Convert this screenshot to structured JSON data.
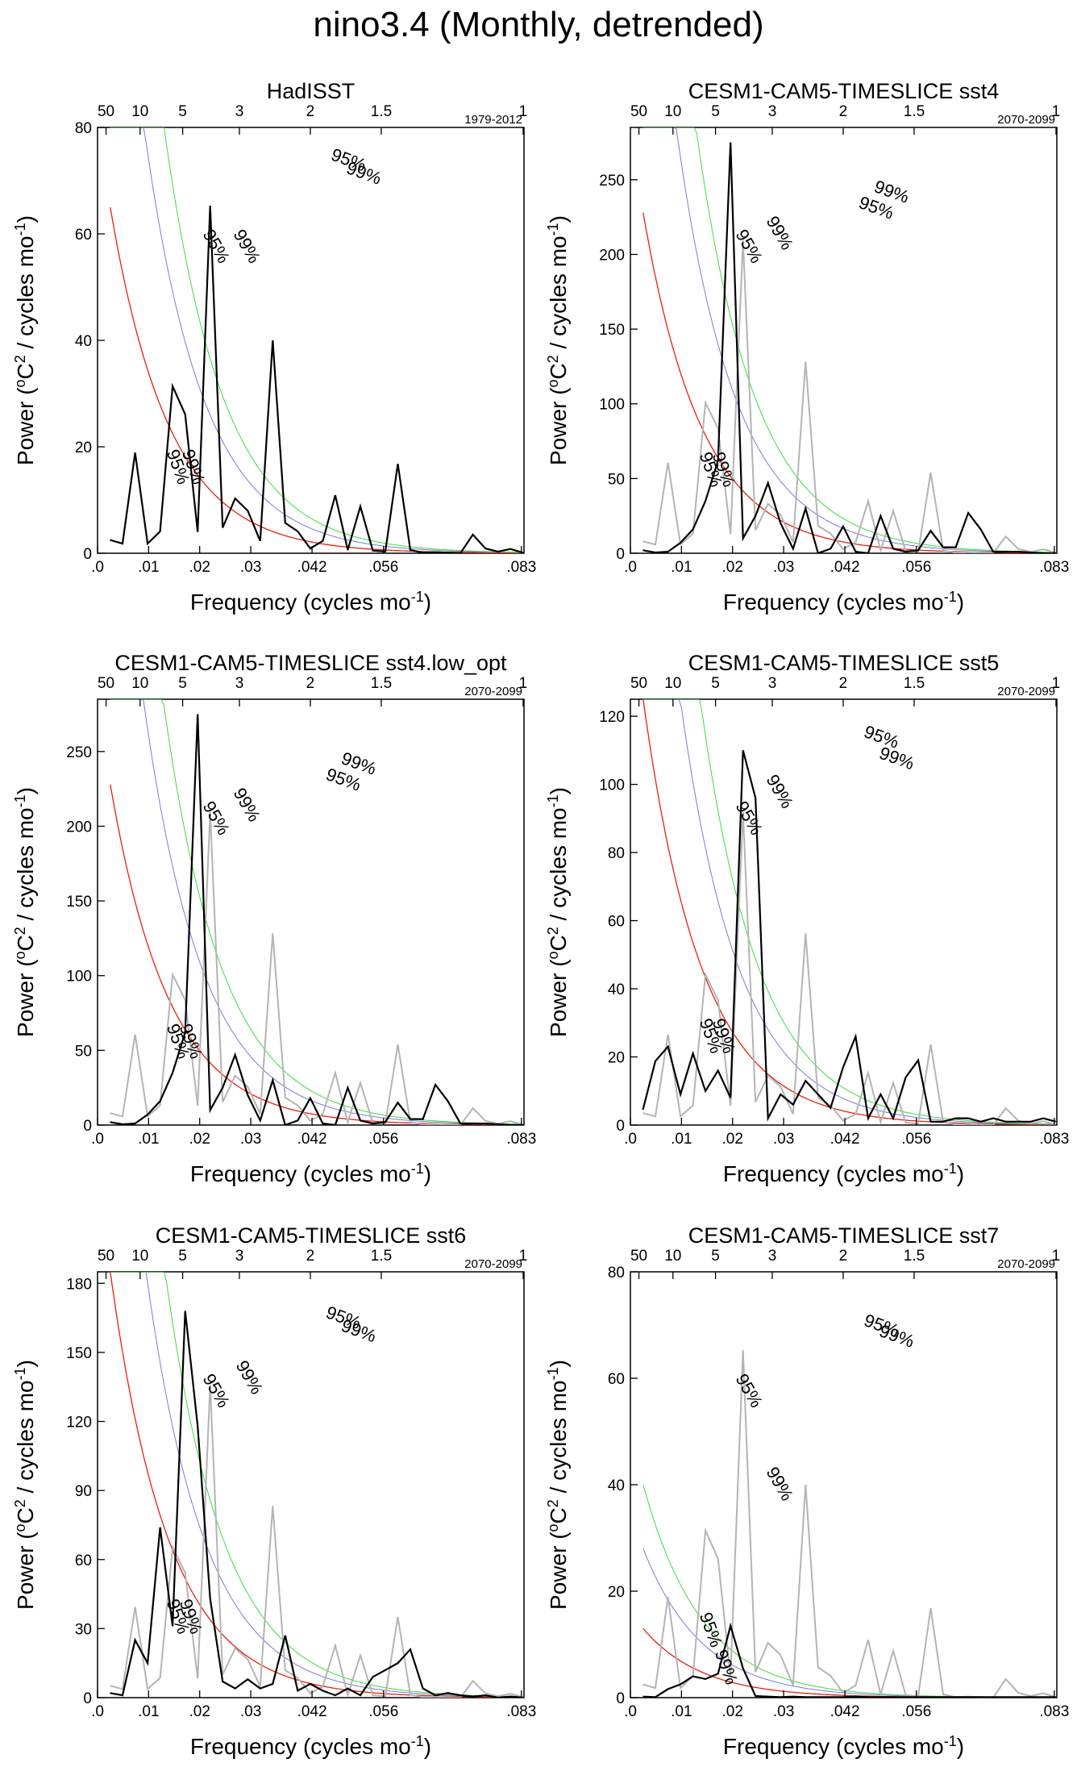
{
  "figure_title": "nino3.4 (Monthly, detrended)",
  "colors": {
    "obs": "#000000",
    "ref": "#b4b4b4",
    "red": "#e8200c",
    "blue": "#7a7ad8",
    "green": "#3ade3a",
    "blue_label": "#1010c8",
    "green_label": "#20d020"
  },
  "shared_axes": {
    "xlabel": "Frequency (cycles mo",
    "xlabel_sup": "-1",
    "xlabel_end": ")",
    "ylabel_pre": "Power (",
    "ylabel_o": "o",
    "ylabel_C": "C",
    "ylabel_2": "2",
    "ylabel_mid": " / cycles mo",
    "ylabel_sup": "-1",
    "ylabel_end": ")",
    "xticks": [
      0,
      0.01,
      0.02,
      0.03,
      0.042,
      0.056,
      0.083
    ],
    "xtick_labels": [
      ".0",
      ".01",
      ".02",
      ".03",
      ".042",
      ".056",
      ".083"
    ],
    "top_ticks": [
      50,
      10,
      5,
      3,
      2,
      1.5,
      1
    ],
    "top_tick_labels": [
      "50",
      "10",
      "5",
      "3",
      "2",
      "1.5",
      "1"
    ],
    "label_95": "95%",
    "label_99": "99%"
  },
  "chart_data": [
    {
      "type": "line",
      "title": "HadISST",
      "years": "1979-2012",
      "ylim": [
        0,
        80
      ],
      "yticks": [
        0,
        20,
        40,
        60,
        80
      ],
      "show_ref": false,
      "obs": [
        2.5,
        1.8,
        18.9,
        1.8,
        4.1,
        31.4,
        26.1,
        4.0,
        65.3,
        4.8,
        10.3,
        8.0,
        2.3,
        40.0,
        5.7,
        4.1,
        0.9,
        2.3,
        10.9,
        0.6,
        8.8,
        0.5,
        0.3,
        16.8,
        0.6,
        0.1,
        0.2,
        0.1,
        0,
        3.5,
        0.9,
        0.3,
        0.8,
        0.1
      ],
      "red_scale": 65,
      "curve_lo": 65,
      "curve_95_scale": 142,
      "curve_99_scale": 200,
      "l95": [
        [
          0.0135,
          0.019
        ],
        [
          0.0205,
          0.06
        ],
        [
          0.0455,
          0.074
        ]
      ],
      "l99": [
        [
          0.0165,
          0.019
        ],
        [
          0.0265,
          0.06
        ],
        [
          0.0485,
          0.0715
        ]
      ]
    },
    {
      "type": "line",
      "title": "CESM1-CAM5-TIMESLICE sst4",
      "years": "2070-2099",
      "ylim": [
        0,
        285
      ],
      "yticks": [
        0,
        50,
        100,
        150,
        200,
        250
      ],
      "show_ref": true,
      "obs": [
        2,
        0.5,
        1,
        7,
        16,
        35,
        62,
        275,
        10,
        25,
        47,
        20,
        3,
        30,
        0,
        3,
        18,
        1,
        0,
        25,
        3,
        1,
        2,
        15,
        4,
        4,
        27,
        16,
        1,
        1,
        1,
        0.5,
        0,
        0
      ],
      "red_scale": 228,
      "curve_95_scale": 500,
      "curve_99_scale": 700,
      "l95": [
        [
          0.0135,
          0.0185
        ],
        [
          0.0205,
          0.06
        ],
        [
          0.0445,
          0.065
        ]
      ],
      "l99": [
        [
          0.016,
          0.0185
        ],
        [
          0.0265,
          0.0625
        ],
        [
          0.0475,
          0.068
        ]
      ]
    },
    {
      "type": "line",
      "title": "CESM1-CAM5-TIMESLICE sst4.low_opt",
      "years": "2070-2099",
      "ylim": [
        0,
        285
      ],
      "yticks": [
        0,
        50,
        100,
        150,
        200,
        250
      ],
      "show_ref": true,
      "obs": [
        2,
        0.5,
        1,
        7,
        16,
        35,
        62,
        275,
        10,
        25,
        47,
        20,
        3,
        30,
        0,
        3,
        18,
        1,
        0,
        25,
        3,
        1,
        2,
        15,
        4,
        4,
        27,
        16,
        1,
        1,
        1,
        0.5,
        0,
        0
      ],
      "red_scale": 228,
      "curve_95_scale": 500,
      "curve_99_scale": 700,
      "l95": [
        [
          0.0135,
          0.0185
        ],
        [
          0.0205,
          0.06
        ],
        [
          0.0445,
          0.065
        ]
      ],
      "l99": [
        [
          0.016,
          0.0185
        ],
        [
          0.0265,
          0.0625
        ],
        [
          0.0475,
          0.068
        ]
      ]
    },
    {
      "type": "line",
      "title": "CESM1-CAM5-TIMESLICE sst5",
      "years": "2070-2099",
      "ylim": [
        0,
        125
      ],
      "yticks": [
        0,
        20,
        40,
        60,
        80,
        100,
        120
      ],
      "show_ref": true,
      "obs": [
        4.5,
        18.8,
        23,
        9,
        21,
        10,
        16,
        8,
        110,
        96,
        2,
        9,
        6,
        13,
        9,
        5,
        17,
        26,
        2,
        9,
        2,
        14,
        19,
        1,
        1,
        2,
        2,
        1,
        2,
        1,
        1,
        1,
        2,
        1
      ],
      "red_scale": 125,
      "curve_95_scale": 235,
      "curve_99_scale": 330,
      "l95": [
        [
          0.0135,
          0.0195
        ],
        [
          0.0205,
          0.06
        ],
        [
          0.0455,
          0.073
        ]
      ],
      "l99": [
        [
          0.016,
          0.0195
        ],
        [
          0.0265,
          0.065
        ],
        [
          0.0485,
          0.069
        ]
      ]
    },
    {
      "type": "line",
      "title": "CESM1-CAM5-TIMESLICE sst6",
      "years": "2070-2099",
      "ylim": [
        0,
        185
      ],
      "yticks": [
        0,
        30,
        60,
        90,
        120,
        150,
        180
      ],
      "show_ref": true,
      "obs": [
        2,
        1,
        25,
        15,
        74,
        31,
        168,
        118,
        43,
        7,
        4,
        8,
        4,
        6,
        27,
        3,
        6,
        3,
        1,
        4,
        1,
        9,
        12,
        15,
        21,
        4,
        1,
        2,
        1,
        0.5,
        1,
        0,
        0.5,
        0
      ],
      "red_scale": 185,
      "curve_95_scale": 340,
      "curve_99_scale": 470,
      "l95": [
        [
          0.0135,
          0.018
        ],
        [
          0.0205,
          0.06
        ],
        [
          0.0445,
          0.0715
        ]
      ],
      "l99": [
        [
          0.016,
          0.018
        ],
        [
          0.027,
          0.0625
        ],
        [
          0.0475,
          0.069
        ]
      ]
    },
    {
      "type": "line",
      "title": "CESM1-CAM5-TIMESLICE sst7",
      "years": "2070-2099",
      "ylim": [
        0,
        80
      ],
      "yticks": [
        0,
        20,
        40,
        60,
        80
      ],
      "show_ref": true,
      "obs": [
        0.2,
        0.1,
        1.6,
        2.5,
        4.0,
        3.5,
        4.5,
        13.5,
        5.5,
        0.3,
        0.2,
        0.1,
        0.2,
        0.1,
        0.1,
        0.1,
        0.1,
        0.2,
        0.1,
        0.1,
        0.1,
        0.1,
        0.1,
        0.1,
        0.1,
        0.1,
        0.1,
        0.1,
        0.1,
        0.1,
        0.1,
        0.1,
        0.1,
        0.1
      ],
      "red_scale": 13,
      "curve_95_scale": 28,
      "curve_99_scale": 40,
      "l95": [
        [
          0.0135,
          0.0155
        ],
        [
          0.0205,
          0.06
        ],
        [
          0.0455,
          0.07
        ]
      ],
      "l99": [
        [
          0.0165,
          0.0085
        ],
        [
          0.0265,
          0.0425
        ],
        [
          0.0485,
          0.068
        ]
      ]
    }
  ]
}
